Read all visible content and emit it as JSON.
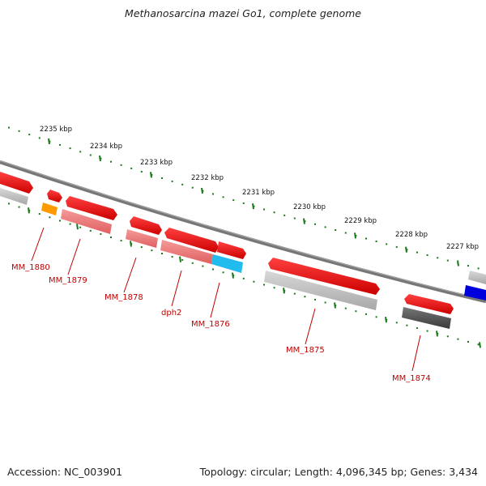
{
  "title": "Methanosarcina mazei Go1, complete genome",
  "footer": {
    "accession": "Accession: NC_003901",
    "stats": "Topology: circular; Length: 4,096,345 bp; Genes: 3,434"
  },
  "ruler_labels": [
    "2235 kbp",
    "2234 kbp",
    "2233 kbp",
    "2232 kbp",
    "2231 kbp",
    "2230 kbp",
    "2229 kbp",
    "2228 kbp",
    "2227 kbp"
  ],
  "gene_labels": [
    "MM_1880",
    "MM_1879",
    "MM_1878",
    "dph2",
    "MM_1876",
    "MM_1875",
    "MM_1874"
  ],
  "colors": {
    "gene": "#ee0000",
    "gene_light": "#f08080",
    "cds_gray": "#bbbbbb",
    "cds_dark": "#555555",
    "orange": "#ff9900",
    "cyan": "#22bbee",
    "blue": "#0000dd",
    "ruler": "#1a7a1a",
    "label": "#c00000"
  }
}
